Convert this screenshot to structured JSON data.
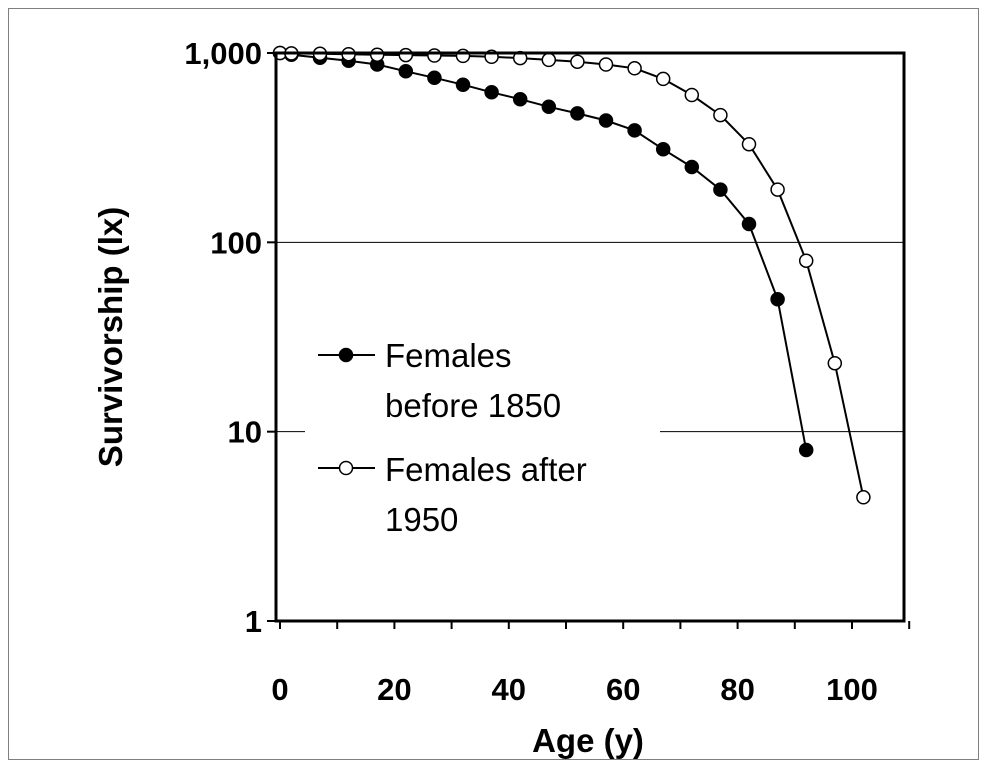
{
  "chart_data": {
    "type": "line",
    "title": "",
    "xlabel": "Age (y)",
    "ylabel": "Survivorship (lx)",
    "yscale": "log",
    "xlim": [
      -2,
      110
    ],
    "ylim": [
      1,
      1000
    ],
    "x_ticks": [
      0,
      20,
      40,
      60,
      80,
      100
    ],
    "x_tick_labels": [
      "0",
      "20",
      "40",
      "60",
      "80",
      "100"
    ],
    "y_ticks": [
      1,
      10,
      100,
      1000
    ],
    "y_tick_labels": [
      "1",
      "10",
      "100",
      "1,000"
    ],
    "grid": "horizontal",
    "legend_position": "left-middle",
    "series": [
      {
        "name": "Females before 1850",
        "marker": "filled-circle",
        "color": "#000000",
        "x": [
          0,
          2,
          7,
          12,
          17,
          22,
          27,
          32,
          37,
          42,
          47,
          52,
          57,
          62,
          67,
          72,
          77,
          82,
          87,
          92
        ],
        "y": [
          1000,
          980,
          945,
          910,
          870,
          800,
          740,
          680,
          620,
          570,
          520,
          480,
          440,
          390,
          310,
          250,
          190,
          125,
          50,
          8
        ]
      },
      {
        "name": "Females after 1950",
        "marker": "open-circle",
        "color": "#000000",
        "x": [
          0,
          2,
          7,
          12,
          17,
          22,
          27,
          32,
          37,
          42,
          47,
          52,
          57,
          62,
          67,
          72,
          77,
          82,
          87,
          92,
          97,
          102
        ],
        "y": [
          1000,
          995,
          990,
          985,
          980,
          975,
          970,
          965,
          955,
          940,
          920,
          900,
          870,
          830,
          730,
          600,
          470,
          330,
          190,
          80,
          23,
          4.5
        ]
      }
    ],
    "legend": [
      {
        "line1": "Females",
        "line2": "before 1850"
      },
      {
        "line1": "Females after",
        "line2": "1950"
      }
    ]
  }
}
